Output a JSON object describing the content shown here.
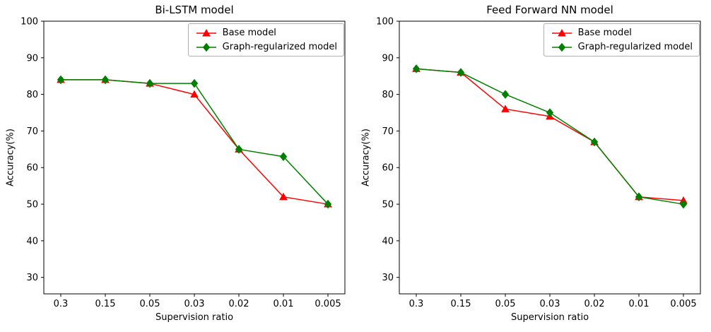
{
  "figure": {
    "background_color": "#ffffff"
  },
  "chart_data": [
    {
      "type": "line",
      "title": "Bi-LSTM model",
      "xlabel": "Supervision ratio",
      "ylabel": "Accuracy(%)",
      "categories": [
        "0.3",
        "0.15",
        "0.05",
        "0.03",
        "0.02",
        "0.01",
        "0.005"
      ],
      "yticks": [
        30,
        40,
        50,
        60,
        70,
        80,
        90,
        100
      ],
      "ylim": [
        25.5,
        100
      ],
      "grid": false,
      "legend_position": "upper right",
      "series": [
        {
          "name": "Base model",
          "color": "#ff0000",
          "marker": "triangle",
          "values": [
            84,
            84,
            83,
            80,
            65,
            52,
            50
          ]
        },
        {
          "name": "Graph-regularized model",
          "color": "#008000",
          "marker": "diamond",
          "values": [
            84,
            84,
            83,
            83,
            65,
            63,
            50
          ]
        }
      ]
    },
    {
      "type": "line",
      "title": "Feed Forward NN model",
      "xlabel": "Supervision ratio",
      "ylabel": "Accuracy(%)",
      "categories": [
        "0.3",
        "0.15",
        "0.05",
        "0.03",
        "0.02",
        "0.01",
        "0.005"
      ],
      "yticks": [
        30,
        40,
        50,
        60,
        70,
        80,
        90,
        100
      ],
      "ylim": [
        25.5,
        100
      ],
      "grid": false,
      "legend_position": "upper right",
      "series": [
        {
          "name": "Base model",
          "color": "#ff0000",
          "marker": "triangle",
          "values": [
            87,
            86,
            76,
            74,
            67,
            52,
            51
          ]
        },
        {
          "name": "Graph-regularized model",
          "color": "#008000",
          "marker": "diamond",
          "values": [
            87,
            86,
            80,
            75,
            67,
            52,
            50
          ]
        }
      ]
    }
  ]
}
